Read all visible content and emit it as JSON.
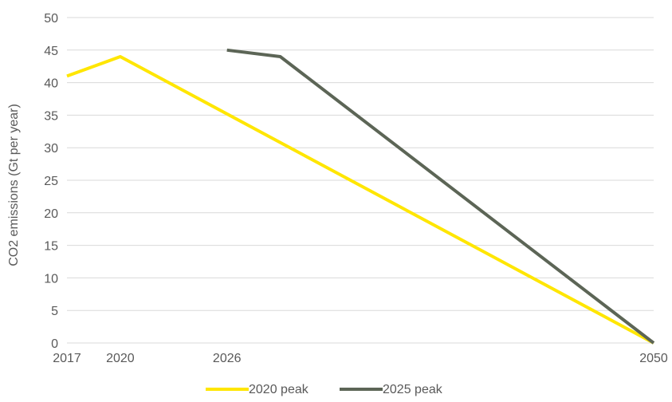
{
  "chart_data": {
    "type": "line",
    "title": "",
    "xlabel": "",
    "ylabel": "CO2 emissions (Gt per year)",
    "x_tick_labels": [
      "2017",
      "2020",
      "2026",
      "2050"
    ],
    "x_range": [
      2017,
      2050
    ],
    "y_ticks": [
      "0",
      "5",
      "10",
      "15",
      "20",
      "25",
      "30",
      "35",
      "40",
      "45",
      "50"
    ],
    "ylim": [
      0,
      50
    ],
    "grid": "horizontal",
    "legend_position": "bottom",
    "series": [
      {
        "name": "2020 peak",
        "color": "#FFE600",
        "points": [
          {
            "x": 2017,
            "y": 41
          },
          {
            "x": 2020,
            "y": 44
          },
          {
            "x": 2050,
            "y": 0
          }
        ]
      },
      {
        "name": "2025 peak",
        "color": "#5C6556",
        "points": [
          {
            "x": 2026,
            "y": 45
          },
          {
            "x": 2029,
            "y": 44
          },
          {
            "x": 2050,
            "y": 0
          }
        ]
      }
    ]
  }
}
